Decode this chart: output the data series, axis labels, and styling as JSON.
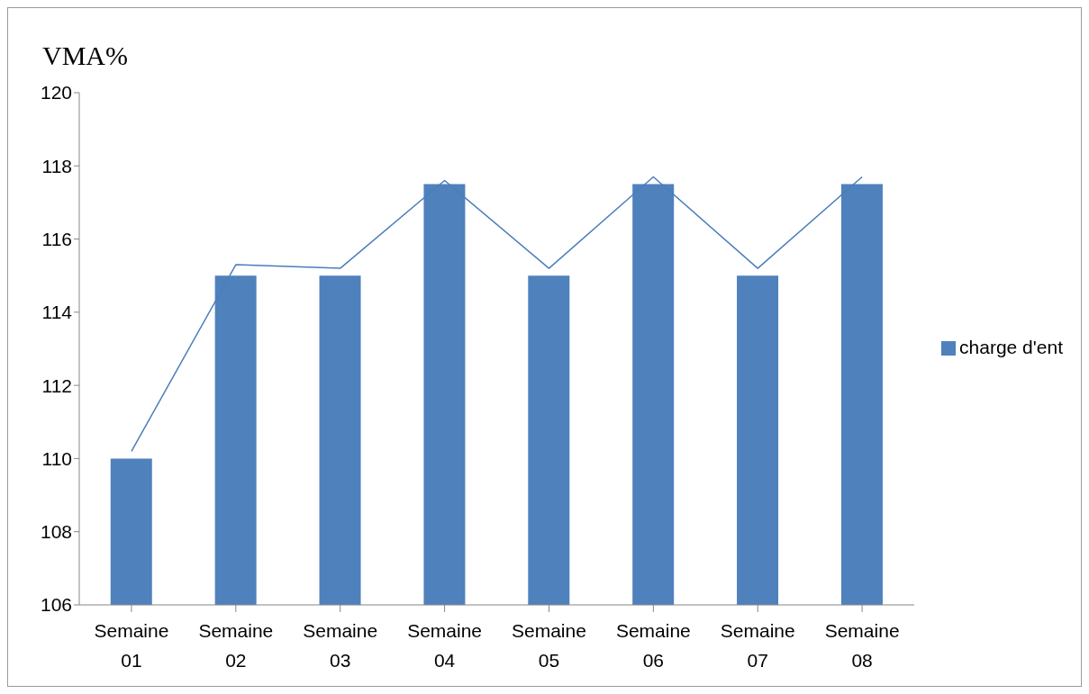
{
  "chart_data": {
    "type": "bar",
    "ylabel": "VMA%",
    "categories": [
      "Semaine 01",
      "Semaine 02",
      "Semaine 03",
      "Semaine 04",
      "Semaine 05",
      "Semaine 06",
      "Semaine 07",
      "Semaine 08"
    ],
    "series": [
      {
        "name": "charge d'ent",
        "color": "#4f81bd",
        "values": [
          110,
          115,
          115,
          117.5,
          115,
          117.5,
          115,
          117.5
        ]
      },
      {
        "type": "line",
        "color": "#4a7ebb",
        "values": [
          110.2,
          115.3,
          115.2,
          117.6,
          115.2,
          117.7,
          115.2,
          117.7
        ]
      }
    ],
    "ylim": [
      106,
      120
    ],
    "yticks": [
      106,
      108,
      110,
      112,
      114,
      116,
      118,
      120
    ],
    "grid": false,
    "legend": "right",
    "marker": "none",
    "line_style": "solid"
  }
}
